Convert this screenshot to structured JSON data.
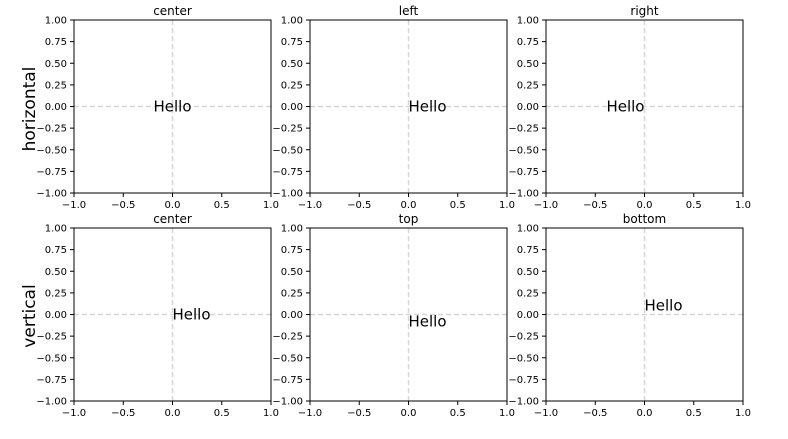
{
  "figure": {
    "row_labels": [
      "horizontal",
      "vertical"
    ]
  },
  "chart_data": [
    {
      "type": "text",
      "title": "center",
      "annotation": {
        "text": "Hello",
        "x": 0,
        "y": 0,
        "ha": "center",
        "va": "center"
      },
      "xlim": [
        -1.0,
        1.0
      ],
      "ylim": [
        -1.0,
        1.0
      ],
      "xticks": [
        -1.0,
        -0.5,
        0.0,
        0.5,
        1.0
      ],
      "yticks": [
        1.0,
        0.75,
        0.5,
        0.25,
        0.0,
        -0.25,
        -0.5,
        -0.75,
        -1.0
      ],
      "xticklabels": [
        "−1.0",
        "−0.5",
        "0.0",
        "0.5",
        "1.0"
      ],
      "yticklabels": [
        "1.00",
        "0.75",
        "0.50",
        "0.25",
        "0.00",
        "−0.25",
        "−0.50",
        "−0.75",
        "−1.00"
      ],
      "reference_lines": {
        "x": 0,
        "y": 0,
        "style": "dashed",
        "color": "#d6d6d6"
      }
    },
    {
      "type": "text",
      "title": "left",
      "annotation": {
        "text": "Hello",
        "x": 0,
        "y": 0,
        "ha": "left",
        "va": "center"
      },
      "xlim": [
        -1.0,
        1.0
      ],
      "ylim": [
        -1.0,
        1.0
      ],
      "xticks": [
        -1.0,
        -0.5,
        0.0,
        0.5,
        1.0
      ],
      "yticks": [
        1.0,
        0.75,
        0.5,
        0.25,
        0.0,
        -0.25,
        -0.5,
        -0.75,
        -1.0
      ],
      "xticklabels": [
        "−1.0",
        "−0.5",
        "0.0",
        "0.5",
        "1.0"
      ],
      "yticklabels": [
        "1.00",
        "0.75",
        "0.50",
        "0.25",
        "0.00",
        "−0.25",
        "−0.50",
        "−0.75",
        "−1.00"
      ],
      "reference_lines": {
        "x": 0,
        "y": 0,
        "style": "dashed",
        "color": "#d6d6d6"
      }
    },
    {
      "type": "text",
      "title": "right",
      "annotation": {
        "text": "Hello",
        "x": 0,
        "y": 0,
        "ha": "right",
        "va": "center"
      },
      "xlim": [
        -1.0,
        1.0
      ],
      "ylim": [
        -1.0,
        1.0
      ],
      "xticks": [
        -1.0,
        -0.5,
        0.0,
        0.5,
        1.0
      ],
      "yticks": [
        1.0,
        0.75,
        0.5,
        0.25,
        0.0,
        -0.25,
        -0.5,
        -0.75,
        -1.0
      ],
      "xticklabels": [
        "−1.0",
        "−0.5",
        "0.0",
        "0.5",
        "1.0"
      ],
      "yticklabels": [
        "1.00",
        "0.75",
        "0.50",
        "0.25",
        "0.00",
        "−0.25",
        "−0.50",
        "−0.75",
        "−1.00"
      ],
      "reference_lines": {
        "x": 0,
        "y": 0,
        "style": "dashed",
        "color": "#d6d6d6"
      }
    },
    {
      "type": "text",
      "title": "center",
      "annotation": {
        "text": "Hello",
        "x": 0,
        "y": 0,
        "ha": "left",
        "va": "center"
      },
      "xlim": [
        -1.0,
        1.0
      ],
      "ylim": [
        -1.0,
        1.0
      ],
      "xticks": [
        -1.0,
        -0.5,
        0.0,
        0.5,
        1.0
      ],
      "yticks": [
        1.0,
        0.75,
        0.5,
        0.25,
        0.0,
        -0.25,
        -0.5,
        -0.75,
        -1.0
      ],
      "xticklabels": [
        "−1.0",
        "−0.5",
        "0.0",
        "0.5",
        "1.0"
      ],
      "yticklabels": [
        "1.00",
        "0.75",
        "0.50",
        "0.25",
        "0.00",
        "−0.25",
        "−0.50",
        "−0.75",
        "−1.00"
      ],
      "reference_lines": {
        "x": 0,
        "y": 0,
        "style": "dashed",
        "color": "#d6d6d6"
      }
    },
    {
      "type": "text",
      "title": "top",
      "annotation": {
        "text": "Hello",
        "x": 0,
        "y": 0,
        "ha": "left",
        "va": "top"
      },
      "xlim": [
        -1.0,
        1.0
      ],
      "ylim": [
        -1.0,
        1.0
      ],
      "xticks": [
        -1.0,
        -0.5,
        0.0,
        0.5,
        1.0
      ],
      "yticks": [
        1.0,
        0.75,
        0.5,
        0.25,
        0.0,
        -0.25,
        -0.5,
        -0.75,
        -1.0
      ],
      "xticklabels": [
        "−1.0",
        "−0.5",
        "0.0",
        "0.5",
        "1.0"
      ],
      "yticklabels": [
        "1.00",
        "0.75",
        "0.50",
        "0.25",
        "0.00",
        "−0.25",
        "−0.50",
        "−0.75",
        "−1.00"
      ],
      "reference_lines": {
        "x": 0,
        "y": 0,
        "style": "dashed",
        "color": "#d6d6d6"
      }
    },
    {
      "type": "text",
      "title": "bottom",
      "annotation": {
        "text": "Hello",
        "x": 0,
        "y": 0,
        "ha": "left",
        "va": "bottom"
      },
      "xlim": [
        -1.0,
        1.0
      ],
      "ylim": [
        -1.0,
        1.0
      ],
      "xticks": [
        -1.0,
        -0.5,
        0.0,
        0.5,
        1.0
      ],
      "yticks": [
        1.0,
        0.75,
        0.5,
        0.25,
        0.0,
        -0.25,
        -0.5,
        -0.75,
        -1.0
      ],
      "xticklabels": [
        "−1.0",
        "−0.5",
        "0.0",
        "0.5",
        "1.0"
      ],
      "yticklabels": [
        "1.00",
        "0.75",
        "0.50",
        "0.25",
        "0.00",
        "−0.25",
        "−0.50",
        "−0.75",
        "−1.00"
      ],
      "reference_lines": {
        "x": 0,
        "y": 0,
        "style": "dashed",
        "color": "#d6d6d6"
      }
    }
  ]
}
